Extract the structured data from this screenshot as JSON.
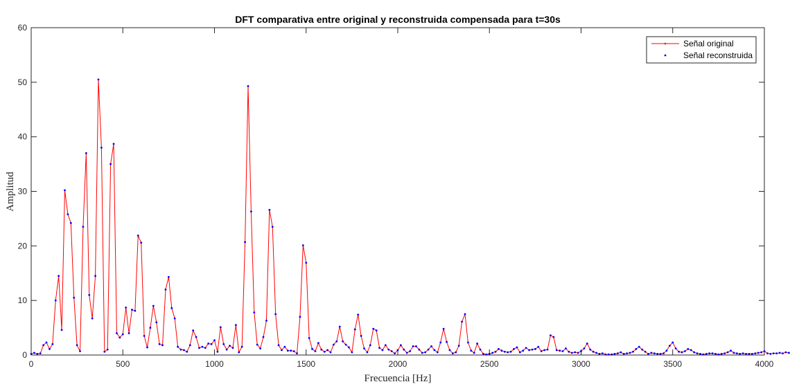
{
  "chart_data": {
    "type": "line",
    "title": "DFT comparativa entre original y reconstruida compensada para t=30s",
    "xlabel": "Frecuencia [Hz]",
    "ylabel": "Amplitud",
    "xlim": [
      0,
      4000
    ],
    "ylim": [
      0,
      60
    ],
    "xticks": [
      0,
      500,
      1000,
      1500,
      2000,
      2500,
      3000,
      3500,
      4000
    ],
    "yticks": [
      0,
      10,
      20,
      30,
      40,
      50,
      60
    ],
    "grid": false,
    "legend_position": "top-right",
    "x_step": 16.667,
    "series": [
      {
        "name": "Señal original",
        "style": "line with small point markers",
        "color": "#ff0000",
        "values": [
          0.2,
          0.4,
          0.2,
          0.3,
          1.8,
          2.3,
          1.1,
          2.0,
          10.0,
          14.5,
          4.6,
          30.2,
          25.8,
          24.2,
          10.5,
          1.8,
          0.7,
          23.5,
          37.0,
          11.0,
          6.7,
          14.5,
          50.5,
          38.0,
          0.6,
          1.0,
          35.0,
          38.7,
          4.0,
          3.2,
          3.8,
          8.7,
          4.0,
          8.3,
          8.1,
          21.9,
          20.6,
          3.5,
          1.4,
          5.0,
          9.0,
          6.0,
          2.0,
          1.8,
          12.0,
          14.3,
          8.6,
          6.7,
          1.5,
          1.0,
          0.9,
          0.6,
          1.8,
          4.5,
          3.3,
          1.3,
          1.5,
          1.3,
          2.1,
          2.0,
          2.7,
          0.6,
          5.1,
          2.0,
          1.0,
          1.7,
          1.3,
          5.5,
          0.5,
          1.5,
          20.7,
          49.3,
          26.3,
          7.8,
          1.9,
          1.2,
          3.3,
          6.3,
          26.6,
          23.5,
          7.5,
          1.8,
          0.9,
          1.5,
          0.8,
          0.8,
          0.7,
          0.3,
          7.0,
          20.1,
          16.9,
          3.1,
          1.1,
          0.7,
          2.2,
          1.0,
          0.6,
          0.9,
          0.5,
          1.9,
          2.5,
          5.2,
          2.5,
          1.9,
          1.4,
          0.5,
          4.7,
          7.4,
          3.5,
          1.2,
          0.5,
          1.8,
          4.8,
          4.5,
          1.3,
          0.9,
          1.8,
          1.0,
          0.7,
          0.3,
          0.9,
          1.8,
          1.0,
          0.4,
          0.7,
          1.6,
          1.6,
          1.0,
          0.4,
          0.5,
          1.0,
          1.6,
          0.9,
          0.5,
          2.3,
          4.8,
          2.4,
          0.9,
          0.3,
          0.5,
          1.7,
          6.1,
          7.5,
          2.3,
          0.8,
          0.4,
          2.1,
          1.0,
          0.2,
          0.1,
          0.2,
          0.4,
          0.6,
          1.1,
          0.8,
          0.6,
          0.5,
          0.6,
          1.1,
          1.4,
          0.5,
          0.8,
          1.3,
          0.9,
          1.0,
          1.1,
          1.5,
          0.7,
          0.9,
          1.0,
          3.6,
          3.3,
          0.9,
          0.8,
          0.7,
          1.2,
          0.6,
          0.4,
          0.5,
          0.4,
          0.7,
          1.2,
          2.1,
          1.0,
          0.6,
          0.4,
          0.2,
          0.3,
          0.1,
          0.1,
          0.1,
          0.2,
          0.3,
          0.5,
          0.2,
          0.3,
          0.4,
          0.6,
          1.1,
          1.5,
          1.0,
          0.6,
          0.2,
          0.4,
          0.3,
          0.2,
          0.2,
          0.3,
          0.8,
          1.7,
          2.3,
          1.2,
          0.6,
          0.5,
          0.7,
          1.1,
          0.9,
          0.5,
          0.3,
          0.2,
          0.1,
          0.2,
          0.3,
          0.3,
          0.2,
          0.1,
          0.2,
          0.3,
          0.5,
          0.8,
          0.4,
          0.3,
          0.2,
          0.3,
          0.2,
          0.2,
          0.2,
          0.3,
          0.4,
          0.5,
          0.7,
          0.3,
          0.2,
          0.3,
          0.3,
          0.4,
          0.3,
          0.5,
          0.4,
          0.3,
          0.6
        ]
      },
      {
        "name": "Señal reconstruida",
        "style": "point markers only",
        "color": "#0000ff",
        "values": [
          0.2,
          0.4,
          0.2,
          0.3,
          1.8,
          2.3,
          1.1,
          2.0,
          10.0,
          14.5,
          4.6,
          30.2,
          25.8,
          24.2,
          10.5,
          1.8,
          0.7,
          23.5,
          37.0,
          11.0,
          6.7,
          14.5,
          50.5,
          38.0,
          0.6,
          1.0,
          35.0,
          38.7,
          4.0,
          3.2,
          3.8,
          8.7,
          4.0,
          8.3,
          8.1,
          21.9,
          20.6,
          3.5,
          1.4,
          5.0,
          9.0,
          6.0,
          2.0,
          1.8,
          12.0,
          14.3,
          8.6,
          6.7,
          1.5,
          1.0,
          0.9,
          0.6,
          1.8,
          4.5,
          3.3,
          1.3,
          1.5,
          1.3,
          2.1,
          2.0,
          2.7,
          0.6,
          5.1,
          2.0,
          1.0,
          1.7,
          1.3,
          5.5,
          0.5,
          1.5,
          20.7,
          49.3,
          26.3,
          7.8,
          1.9,
          1.2,
          3.3,
          6.3,
          26.6,
          23.5,
          7.5,
          1.8,
          0.9,
          1.5,
          0.8,
          0.8,
          0.7,
          0.3,
          7.0,
          20.1,
          16.9,
          3.1,
          1.1,
          0.7,
          2.2,
          1.0,
          0.6,
          0.9,
          0.5,
          1.9,
          2.5,
          5.2,
          2.5,
          1.9,
          1.4,
          0.5,
          4.7,
          7.4,
          3.5,
          1.2,
          0.5,
          1.8,
          4.8,
          4.5,
          1.3,
          0.9,
          1.8,
          1.0,
          0.7,
          0.3,
          0.9,
          1.8,
          1.0,
          0.4,
          0.7,
          1.6,
          1.6,
          1.0,
          0.4,
          0.5,
          1.0,
          1.6,
          0.9,
          0.5,
          2.3,
          4.8,
          2.4,
          0.9,
          0.3,
          0.5,
          1.7,
          6.1,
          7.5,
          2.3,
          0.8,
          0.4,
          2.1,
          1.0,
          0.2,
          0.1,
          0.2,
          0.4,
          0.6,
          1.1,
          0.8,
          0.6,
          0.5,
          0.6,
          1.1,
          1.4,
          0.5,
          0.8,
          1.3,
          0.9,
          1.0,
          1.1,
          1.5,
          0.7,
          0.9,
          1.0,
          3.6,
          3.3,
          0.9,
          0.8,
          0.7,
          1.2,
          0.6,
          0.4,
          0.5,
          0.4,
          0.7,
          1.2,
          2.1,
          1.0,
          0.6,
          0.4,
          0.2,
          0.3,
          0.1,
          0.1,
          0.1,
          0.2,
          0.3,
          0.5,
          0.2,
          0.3,
          0.4,
          0.6,
          1.1,
          1.5,
          1.0,
          0.6,
          0.2,
          0.4,
          0.3,
          0.2,
          0.2,
          0.3,
          0.8,
          1.7,
          2.3,
          1.2,
          0.6,
          0.5,
          0.7,
          1.1,
          0.9,
          0.5,
          0.3,
          0.2,
          0.1,
          0.2,
          0.3,
          0.3,
          0.2,
          0.1,
          0.2,
          0.3,
          0.5,
          0.8,
          0.4,
          0.3,
          0.2,
          0.3,
          0.2,
          0.2,
          0.2,
          0.3,
          0.4,
          0.5,
          0.7,
          0.3,
          0.2,
          0.3,
          0.3,
          0.4,
          0.3,
          0.5,
          0.4,
          0.3,
          0.6
        ]
      }
    ]
  }
}
